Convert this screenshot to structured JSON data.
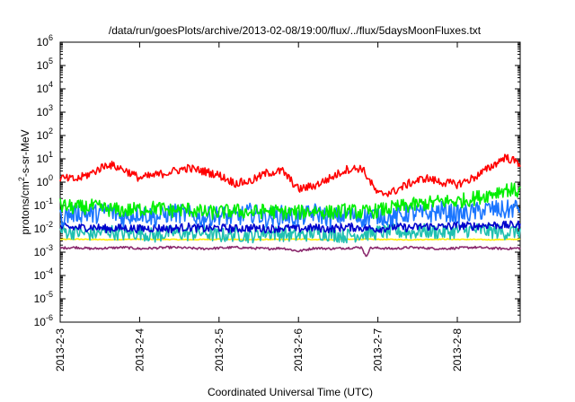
{
  "chart_data": {
    "type": "line",
    "title": "/data/run/goesPlots/archive/2013-02-08/19:00/flux/../flux/5daysMoonFluxes.txt",
    "xlabel": "Coordinated Universal Time (UTC)",
    "ylabel": "protons/cm²-s-sr-MeV",
    "ylabel_parts": {
      "base": "protons/cm",
      "sup": "2",
      "rest": "-s-sr-MeV"
    },
    "yscale": "log",
    "ylim_exp": [
      -6,
      6
    ],
    "ytick_base": "10",
    "xlim_days": [
      "2013-02-03",
      "2013-02-08 19:00"
    ],
    "xtick_labels": [
      "2013-2-3",
      "2013-2-4",
      "2013-2-5",
      "2013-2-6",
      "2013-2-7",
      "2013-2-8"
    ],
    "grid": false,
    "legend": false,
    "series": [
      {
        "color": "#ff0000",
        "x": [
          3.0,
          3.2,
          3.4,
          3.6,
          3.8,
          4.0,
          4.2,
          4.4,
          4.6,
          4.8,
          5.0,
          5.2,
          5.4,
          5.6,
          5.8,
          6.0,
          6.2,
          6.4,
          6.6,
          6.8,
          7.0,
          7.2,
          7.4,
          7.6,
          7.8,
          8.0,
          8.2,
          8.4,
          8.6,
          8.8
        ],
        "y": [
          1.5,
          1.3,
          2.5,
          6.0,
          3.5,
          1.5,
          2.0,
          2.8,
          4.0,
          3.0,
          2.0,
          0.9,
          1.1,
          2.5,
          3.0,
          0.5,
          0.7,
          1.5,
          3.5,
          4.0,
          0.3,
          0.4,
          0.9,
          1.5,
          1.0,
          0.8,
          1.5,
          4.0,
          12.0,
          6.0
        ]
      },
      {
        "color": "#00ee00",
        "x": [
          3.0,
          3.2,
          3.4,
          3.6,
          3.8,
          4.0,
          4.2,
          4.4,
          4.6,
          4.8,
          5.0,
          5.2,
          5.4,
          5.6,
          5.8,
          6.0,
          6.2,
          6.4,
          6.6,
          6.8,
          7.0,
          7.2,
          7.4,
          7.6,
          7.8,
          8.0,
          8.2,
          8.4,
          8.6,
          8.8
        ],
        "y": [
          0.1,
          0.08,
          0.09,
          0.07,
          0.06,
          0.07,
          0.08,
          0.06,
          0.07,
          0.05,
          0.05,
          0.06,
          0.05,
          0.06,
          0.05,
          0.05,
          0.06,
          0.05,
          0.06,
          0.05,
          0.06,
          0.08,
          0.1,
          0.12,
          0.15,
          0.15,
          0.2,
          0.3,
          0.5,
          0.4
        ]
      },
      {
        "color": "#1a75ff",
        "x": [
          3.0,
          3.2,
          3.4,
          3.6,
          3.8,
          4.0,
          4.2,
          4.4,
          4.6,
          4.8,
          5.0,
          5.2,
          5.4,
          5.6,
          5.8,
          6.0,
          6.2,
          6.4,
          6.6,
          6.8,
          7.0,
          7.2,
          7.4,
          7.6,
          7.8,
          8.0,
          8.2,
          8.4,
          8.6,
          8.8
        ],
        "y": [
          0.03,
          0.05,
          0.04,
          0.06,
          0.03,
          0.05,
          0.03,
          0.05,
          0.04,
          0.03,
          0.04,
          0.03,
          0.05,
          0.03,
          0.04,
          0.03,
          0.05,
          0.03,
          0.04,
          0.03,
          0.04,
          0.03,
          0.05,
          0.04,
          0.06,
          0.04,
          0.05,
          0.07,
          0.06,
          0.09
        ]
      },
      {
        "color": "#0000cc",
        "x": [
          3.0,
          3.2,
          3.4,
          3.6,
          3.8,
          4.0,
          4.2,
          4.4,
          4.6,
          4.8,
          5.0,
          5.2,
          5.4,
          5.6,
          5.8,
          6.0,
          6.2,
          6.4,
          6.6,
          6.8,
          7.0,
          7.2,
          7.4,
          7.6,
          7.8,
          8.0,
          8.2,
          8.4,
          8.6,
          8.8
        ],
        "y": [
          0.012,
          0.011,
          0.012,
          0.01,
          0.011,
          0.01,
          0.011,
          0.01,
          0.012,
          0.01,
          0.011,
          0.01,
          0.011,
          0.01,
          0.011,
          0.01,
          0.011,
          0.01,
          0.012,
          0.011,
          0.01,
          0.012,
          0.011,
          0.013,
          0.012,
          0.014,
          0.013,
          0.015,
          0.014,
          0.015
        ]
      },
      {
        "color": "#20c0b0",
        "x": [
          3.0,
          3.2,
          3.4,
          3.6,
          3.8,
          4.0,
          4.2,
          4.4,
          4.6,
          4.8,
          5.0,
          5.2,
          5.4,
          5.6,
          5.8,
          6.0,
          6.2,
          6.4,
          6.6,
          6.8,
          7.0,
          7.2,
          7.4,
          7.6,
          7.8,
          8.0,
          8.2,
          8.4,
          8.6,
          8.8
        ],
        "y": [
          0.008,
          0.007,
          0.006,
          0.008,
          0.006,
          0.007,
          0.005,
          0.007,
          0.006,
          0.007,
          0.005,
          0.006,
          0.005,
          0.007,
          0.006,
          0.005,
          0.007,
          0.006,
          0.005,
          0.006,
          0.007,
          0.008,
          0.007,
          0.008,
          0.007,
          0.008,
          0.009,
          0.008,
          0.007,
          0.008
        ]
      },
      {
        "color": "#ffee00",
        "x": [
          3.0,
          3.2,
          3.4,
          3.6,
          3.8,
          4.0,
          4.2,
          4.4,
          4.6,
          4.8,
          5.0,
          5.2,
          5.4,
          5.6,
          5.8,
          6.0,
          6.2,
          6.4,
          6.6,
          6.8,
          7.0,
          7.2,
          7.4,
          7.6,
          7.8,
          8.0,
          8.2,
          8.4,
          8.6,
          8.8
        ],
        "y": [
          0.0035,
          0.0036,
          0.0035,
          0.0034,
          0.0035,
          0.0036,
          0.0035,
          0.0035,
          0.0034,
          0.0035,
          0.0036,
          0.0035,
          0.0034,
          0.0035,
          0.0035,
          0.0036,
          0.0035,
          0.0034,
          0.0035,
          0.0036,
          0.0035,
          0.0035,
          0.0034,
          0.0035,
          0.0036,
          0.0035,
          0.0035,
          0.0034,
          0.0035,
          0.0036
        ]
      },
      {
        "color": "#8b2a6e",
        "x": [
          3.0,
          3.2,
          3.4,
          3.6,
          3.8,
          4.0,
          4.2,
          4.4,
          4.6,
          4.8,
          5.0,
          5.2,
          5.4,
          5.6,
          5.8,
          6.0,
          6.2,
          6.4,
          6.6,
          6.8,
          6.85,
          6.9,
          7.0,
          7.2,
          7.4,
          7.6,
          7.8,
          8.0,
          8.2,
          8.4,
          8.6,
          8.8
        ],
        "y": [
          0.0015,
          0.0016,
          0.0014,
          0.0015,
          0.0016,
          0.0014,
          0.0015,
          0.0016,
          0.0015,
          0.0014,
          0.0015,
          0.0016,
          0.0015,
          0.0014,
          0.0015,
          0.0011,
          0.0015,
          0.0014,
          0.0015,
          0.0016,
          0.0006,
          0.0015,
          0.0015,
          0.0014,
          0.0016,
          0.0015,
          0.0014,
          0.0015,
          0.0016,
          0.0015,
          0.0014,
          0.0015
        ]
      }
    ]
  }
}
